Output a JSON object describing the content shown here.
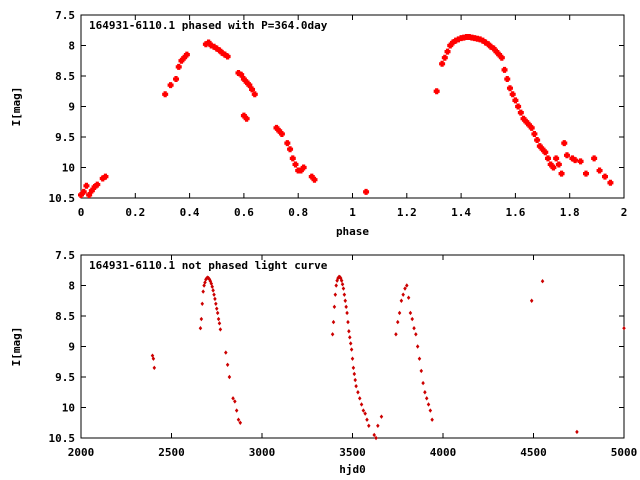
{
  "chart_data": [
    {
      "type": "scatter",
      "title": "164931-6110.1 phased with P=364.0day",
      "xlabel": "phase",
      "ylabel": "I[mag]",
      "xlim": [
        0,
        2
      ],
      "ylim": [
        10.5,
        7.5
      ],
      "y_inverted": true,
      "xticks": [
        "0",
        "0.2",
        "0.4",
        "0.6",
        "0.8",
        "1",
        "1.2",
        "1.4",
        "1.6",
        "1.8",
        "2"
      ],
      "yticks": [
        "7.5",
        "8",
        "8.5",
        "9",
        "9.5",
        "10",
        "10.5"
      ],
      "grid": false,
      "marker_color": "#ff0000",
      "series": [
        {
          "x": [
            0.0,
            0.01,
            0.02,
            0.03,
            0.04,
            0.05,
            0.06,
            0.08,
            0.09,
            0.31,
            0.33,
            0.35,
            0.36,
            0.37,
            0.38,
            0.39,
            0.46,
            0.47,
            0.48,
            0.49,
            0.5,
            0.51,
            0.52,
            0.53,
            0.54,
            0.58,
            0.59,
            0.6,
            0.61,
            0.62,
            0.63,
            0.64,
            0.6,
            0.61,
            0.72,
            0.73,
            0.74,
            0.76,
            0.77,
            0.78,
            0.79,
            0.8,
            0.81,
            0.82,
            0.85,
            0.86,
            1.05,
            1.31,
            1.33,
            1.34,
            1.35,
            1.36,
            1.37,
            1.38,
            1.39,
            1.4,
            1.41,
            1.42,
            1.43,
            1.44,
            1.45,
            1.46,
            1.47,
            1.48,
            1.49,
            1.5,
            1.51,
            1.52,
            1.53,
            1.54,
            1.55,
            1.56,
            1.57,
            1.58,
            1.59,
            1.6,
            1.61,
            1.62,
            1.63,
            1.64,
            1.65,
            1.66,
            1.67,
            1.68,
            1.69,
            1.7,
            1.71,
            1.72,
            1.73,
            1.74,
            1.75,
            1.76,
            1.77,
            1.78,
            1.79,
            1.81,
            1.82,
            1.84,
            1.86,
            1.89,
            1.91,
            1.93,
            1.95
          ],
          "y": [
            10.45,
            10.4,
            10.3,
            10.45,
            10.38,
            10.32,
            10.28,
            10.18,
            10.15,
            8.8,
            8.65,
            8.55,
            8.35,
            8.25,
            8.2,
            8.15,
            7.98,
            7.95,
            8.0,
            8.02,
            8.05,
            8.08,
            8.12,
            8.15,
            8.18,
            8.45,
            8.48,
            8.55,
            8.6,
            8.65,
            8.72,
            8.8,
            9.15,
            9.2,
            9.35,
            9.4,
            9.45,
            9.6,
            9.7,
            9.85,
            9.95,
            10.05,
            10.05,
            10.0,
            10.15,
            10.2,
            10.4,
            8.75,
            8.3,
            8.2,
            8.1,
            8.0,
            7.95,
            7.92,
            7.9,
            7.88,
            7.87,
            7.86,
            7.86,
            7.87,
            7.88,
            7.89,
            7.9,
            7.92,
            7.95,
            7.98,
            8.02,
            8.05,
            8.1,
            8.15,
            8.2,
            8.4,
            8.55,
            8.7,
            8.8,
            8.9,
            9.0,
            9.1,
            9.2,
            9.25,
            9.3,
            9.35,
            9.45,
            9.55,
            9.65,
            9.7,
            9.75,
            9.85,
            9.95,
            10.0,
            9.85,
            9.95,
            10.1,
            9.6,
            9.8,
            9.85,
            9.88,
            9.9,
            10.1,
            9.85,
            10.05,
            10.15,
            10.25
          ]
        }
      ]
    },
    {
      "type": "scatter",
      "title": "164931-6110.1 not phased light curve",
      "xlabel": "hjd0",
      "ylabel": "I[mag]",
      "xlim": [
        2000,
        5000
      ],
      "ylim": [
        10.5,
        7.5
      ],
      "y_inverted": true,
      "xticks": [
        "2000",
        "2500",
        "3000",
        "3500",
        "4000",
        "4500",
        "5000"
      ],
      "yticks": [
        "7.5",
        "8",
        "8.5",
        "9",
        "9.5",
        "10",
        "10.5"
      ],
      "grid": false,
      "marker_color": "#cc0000",
      "series": [
        {
          "x": [
            2395,
            2400,
            2405,
            2660,
            2665,
            2670,
            2675,
            2680,
            2685,
            2690,
            2695,
            2700,
            2705,
            2710,
            2715,
            2720,
            2725,
            2730,
            2735,
            2740,
            2745,
            2750,
            2755,
            2760,
            2765,
            2770,
            2800,
            2810,
            2820,
            2840,
            2850,
            2860,
            2870,
            2880,
            3390,
            3395,
            3400,
            3405,
            3410,
            3415,
            3420,
            3425,
            3430,
            3435,
            3440,
            3445,
            3450,
            3455,
            3460,
            3465,
            3470,
            3475,
            3480,
            3485,
            3490,
            3495,
            3500,
            3505,
            3510,
            3515,
            3520,
            3530,
            3540,
            3550,
            3560,
            3570,
            3580,
            3590,
            3620,
            3630,
            3640,
            3660,
            3740,
            3750,
            3760,
            3770,
            3780,
            3790,
            3800,
            3810,
            3820,
            3830,
            3840,
            3850,
            3860,
            3870,
            3880,
            3890,
            3900,
            3910,
            3920,
            3930,
            3940,
            4490,
            4550,
            4740,
            5000
          ],
          "y": [
            9.15,
            9.2,
            9.35,
            8.7,
            8.55,
            8.3,
            8.1,
            8.0,
            7.95,
            7.9,
            7.88,
            7.87,
            7.88,
            7.9,
            7.93,
            7.97,
            8.02,
            8.08,
            8.15,
            8.22,
            8.3,
            8.38,
            8.45,
            8.55,
            8.62,
            8.72,
            9.1,
            9.3,
            9.5,
            9.85,
            9.9,
            10.05,
            10.2,
            10.25,
            8.8,
            8.6,
            8.35,
            8.15,
            8.0,
            7.92,
            7.88,
            7.86,
            7.86,
            7.88,
            7.92,
            7.98,
            8.05,
            8.15,
            8.25,
            8.35,
            8.45,
            8.6,
            8.75,
            8.85,
            8.95,
            9.05,
            9.2,
            9.35,
            9.45,
            9.55,
            9.65,
            9.75,
            9.85,
            9.95,
            10.05,
            10.1,
            10.2,
            10.3,
            10.45,
            10.5,
            10.3,
            10.15,
            8.8,
            8.6,
            8.45,
            8.25,
            8.15,
            8.05,
            8.0,
            8.2,
            8.45,
            8.55,
            8.7,
            8.8,
            9.0,
            9.2,
            9.4,
            9.6,
            9.75,
            9.85,
            9.95,
            10.05,
            10.2,
            8.25,
            7.93,
            10.4,
            8.7
          ]
        }
      ]
    }
  ]
}
